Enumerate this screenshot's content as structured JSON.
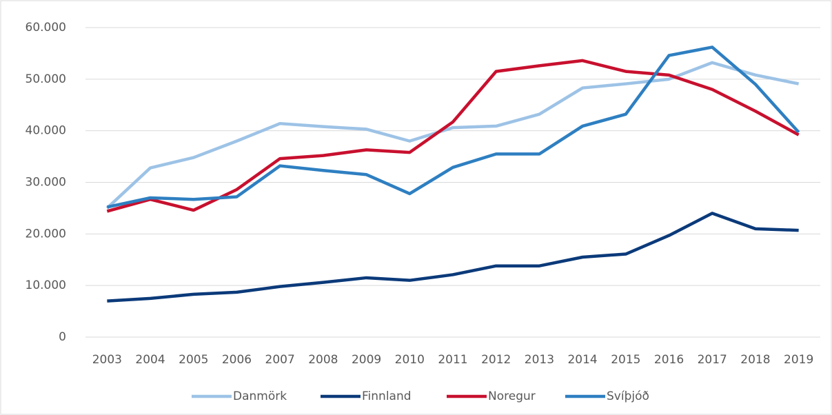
{
  "chart_data": {
    "type": "line",
    "categories": [
      "2003",
      "2004",
      "2005",
      "2006",
      "2007",
      "2008",
      "2009",
      "2010",
      "2011",
      "2012",
      "2013",
      "2014",
      "2015",
      "2016",
      "2017",
      "2018",
      "2019"
    ],
    "series": [
      {
        "name": "Danmörk",
        "color": "#9dc3e6",
        "values": [
          25000,
          32800,
          34800,
          38000,
          41400,
          40800,
          40300,
          38000,
          40600,
          40900,
          43200,
          48300,
          49100,
          50000,
          53200,
          50800,
          49100
        ]
      },
      {
        "name": "Finnland",
        "color": "#0b3a7a",
        "values": [
          7000,
          7500,
          8300,
          8700,
          9800,
          10600,
          11500,
          11000,
          12100,
          13800,
          13800,
          15500,
          16100,
          19700,
          24000,
          21000,
          20700
        ]
      },
      {
        "name": "Noregur",
        "color": "#c8102e",
        "values": [
          24400,
          26700,
          24600,
          28600,
          34600,
          35200,
          36300,
          35800,
          41700,
          51500,
          52600,
          53600,
          51500,
          50800,
          48000,
          43800,
          39200
        ]
      },
      {
        "name": "Svíþjóð",
        "color": "#2e7fc1",
        "values": [
          25200,
          27000,
          26700,
          27200,
          33200,
          32300,
          31500,
          27800,
          32900,
          35500,
          35500,
          40900,
          43200,
          54600,
          56200,
          49000,
          39700
        ]
      }
    ],
    "ylim": [
      0,
      60000
    ],
    "yticks": [
      0,
      {
        "value": 10000,
        "label": "10.000"
      },
      {
        "value": 20000,
        "label": "20.000"
      },
      {
        "value": 30000,
        "label": "30.000"
      },
      {
        "value": 40000,
        "label": "40.000"
      },
      {
        "value": 50000,
        "label": "50.000"
      },
      {
        "value": 60000,
        "label": "60.000"
      }
    ],
    "grid": true,
    "legend": "bottom"
  }
}
